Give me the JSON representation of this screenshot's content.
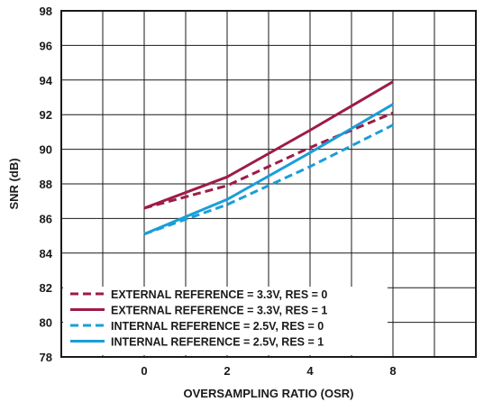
{
  "chart_data": {
    "type": "line",
    "title": "",
    "xlabel": "OVERSAMPLING RATIO (OSR)",
    "ylabel": "SNR (dB)",
    "categories": [
      "0",
      "2",
      "4",
      "8"
    ],
    "ylim": [
      78,
      98
    ],
    "yticks": [
      "78",
      "80",
      "82",
      "84",
      "86",
      "88",
      "90",
      "92",
      "94",
      "96",
      "98"
    ],
    "grid": true,
    "legend_position": "bottom-left",
    "series": [
      {
        "name": "EXTERNAL REFERENCE = 3.3V, RES = 0",
        "values": [
          86.6,
          87.9,
          90.1,
          92.1
        ],
        "color": "#9e1b46",
        "dash": "dashed"
      },
      {
        "name": "EXTERNAL REFERENCE = 3.3V, RES = 1",
        "values": [
          86.6,
          88.4,
          91.1,
          93.9
        ],
        "color": "#9e1b46",
        "dash": "solid"
      },
      {
        "name": "INTERNAL REFERENCE = 2.5V, RES = 0",
        "values": [
          85.1,
          86.8,
          89.0,
          91.4
        ],
        "color": "#1a9ed9",
        "dash": "dashed"
      },
      {
        "name": "INTERNAL REFERENCE = 2.5V, RES = 1",
        "values": [
          85.1,
          87.1,
          89.8,
          92.6
        ],
        "color": "#1a9ed9",
        "dash": "solid"
      }
    ]
  }
}
